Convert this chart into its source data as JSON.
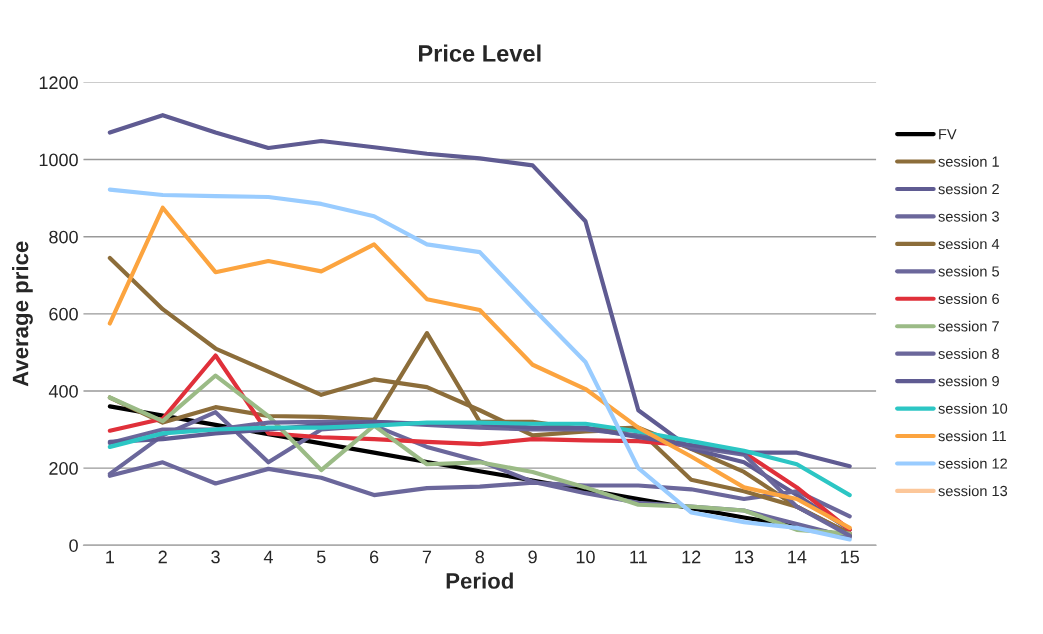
{
  "chart_data": {
    "type": "line",
    "title": "Price Level",
    "xlabel": "Period",
    "ylabel": "Average price",
    "categories": [
      "1",
      "2",
      "3",
      "4",
      "5",
      "6",
      "7",
      "8",
      "9",
      "10",
      "11",
      "12",
      "13",
      "14",
      "15"
    ],
    "ylim": [
      0,
      1200
    ],
    "yticks": [
      0,
      200,
      400,
      600,
      800,
      1000,
      1200
    ],
    "grid": "y",
    "legend": "right",
    "marker": "none",
    "line_style": "solid",
    "series": [
      {
        "name": "FV",
        "color": "#000000",
        "values": [
          360,
          336,
          312,
          288,
          264,
          240,
          216,
          192,
          168,
          144,
          120,
          96,
          72,
          48,
          24
        ]
      },
      {
        "name": "session 1",
        "color": "#8c6d3a",
        "values": [
          383,
          318,
          358,
          335,
          333,
          325,
          550,
          320,
          320,
          300,
          305,
          250,
          190,
          100,
          30
        ]
      },
      {
        "name": "session 2",
        "color": "#5f5b92",
        "values": [
          1070,
          1115,
          1070,
          1030,
          1048,
          1032,
          1015,
          1003,
          985,
          840,
          350,
          250,
          215,
          130,
          40
        ]
      },
      {
        "name": "session 3",
        "color": "#6b679b",
        "values": [
          180,
          215,
          160,
          198,
          175,
          130,
          148,
          152,
          162,
          155,
          155,
          145,
          120,
          140,
          75
        ]
      },
      {
        "name": "session 4",
        "color": "#8c6d3a",
        "values": [
          745,
          612,
          510,
          450,
          390,
          430,
          410,
          350,
          285,
          295,
          300,
          170,
          140,
          100,
          30
        ]
      },
      {
        "name": "session 5",
        "color": "#6b679b",
        "values": [
          185,
          285,
          345,
          215,
          300,
          310,
          255,
          218,
          165,
          135,
          110,
          100,
          90,
          55,
          20
        ]
      },
      {
        "name": "session 6",
        "color": "#e0303a",
        "values": [
          297,
          328,
          492,
          290,
          280,
          275,
          268,
          262,
          275,
          272,
          270,
          258,
          240,
          150,
          40
        ]
      },
      {
        "name": "session 7",
        "color": "#9bbb86",
        "values": [
          383,
          322,
          440,
          335,
          195,
          310,
          210,
          215,
          190,
          150,
          105,
          100,
          90,
          40,
          30
        ]
      },
      {
        "name": "session 8",
        "color": "#6b679b",
        "values": [
          265,
          300,
          300,
          318,
          320,
          320,
          312,
          305,
          300,
          300,
          285,
          255,
          235,
          100,
          25
        ]
      },
      {
        "name": "session 9",
        "color": "#5f5b92",
        "values": [
          268,
          275,
          290,
          300,
          312,
          320,
          315,
          315,
          305,
          305,
          280,
          260,
          240,
          240,
          205
        ]
      },
      {
        "name": "session 10",
        "color": "#2cc6c4",
        "values": [
          255,
          290,
          300,
          305,
          305,
          310,
          318,
          318,
          315,
          315,
          295,
          270,
          245,
          210,
          130
        ]
      },
      {
        "name": "session 11",
        "color": "#fca43f",
        "values": [
          575,
          875,
          708,
          737,
          710,
          780,
          638,
          610,
          468,
          405,
          305,
          230,
          150,
          120,
          45
        ]
      },
      {
        "name": "session 12",
        "color": "#99ccff",
        "values": [
          922,
          908,
          905,
          903,
          885,
          853,
          780,
          760,
          615,
          475,
          200,
          85,
          60,
          45,
          15
        ]
      },
      {
        "name": "session 13",
        "color": "#fcc79a",
        "values": [
          null,
          null,
          null,
          null,
          null,
          null,
          null,
          null,
          null,
          null,
          null,
          null,
          null,
          null,
          null
        ]
      }
    ]
  }
}
